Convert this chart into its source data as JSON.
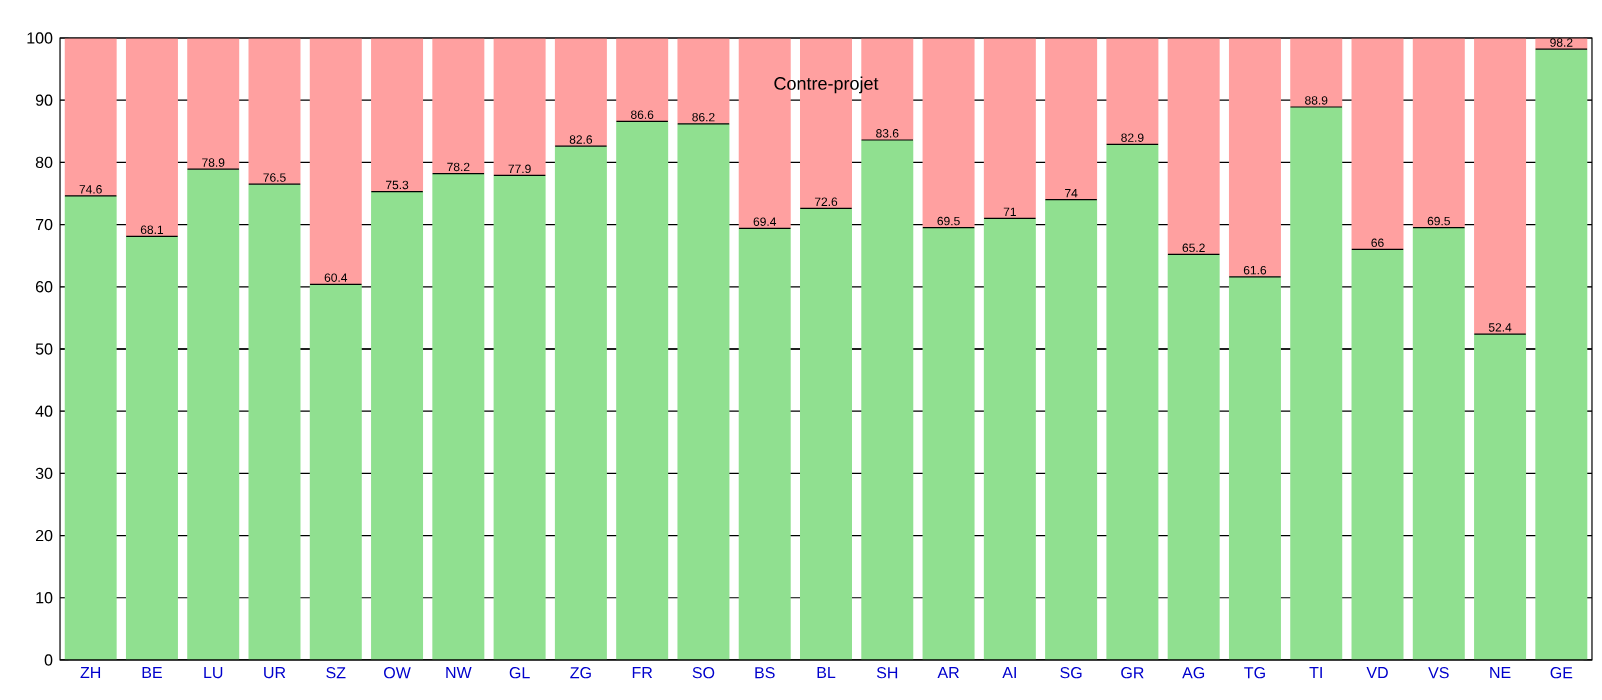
{
  "chart_data": {
    "type": "bar",
    "title": "Contre-projet",
    "stacked": true,
    "categories": [
      "ZH",
      "BE",
      "LU",
      "UR",
      "SZ",
      "OW",
      "NW",
      "GL",
      "ZG",
      "FR",
      "SO",
      "BS",
      "BL",
      "SH",
      "AR",
      "AI",
      "SG",
      "GR",
      "AG",
      "TG",
      "TI",
      "VD",
      "VS",
      "NE",
      "GE"
    ],
    "series": [
      {
        "color": "#90e090",
        "values": [
          74.6,
          68.1,
          78.9,
          76.5,
          60.4,
          75.3,
          78.2,
          77.9,
          82.6,
          86.6,
          86.2,
          69.4,
          72.6,
          83.6,
          69.5,
          71,
          74,
          82.9,
          65.2,
          61.6,
          88.9,
          66,
          69.5,
          52.4,
          98.2
        ],
        "value_labels": [
          "74.6",
          "68.1",
          "78.9",
          "76.5",
          "60.4",
          "75.3",
          "78.2",
          "77.9",
          "82.6",
          "86.6",
          "86.2",
          "69.4",
          "72.6",
          "83.6",
          "69.5",
          "71",
          "74",
          "82.9",
          "65.2",
          "61.6",
          "88.9",
          "66",
          "69.5",
          "52.4",
          "98.2"
        ]
      },
      {
        "color": "#ffa0a0",
        "values": [
          25.4,
          31.9,
          21.1,
          23.5,
          39.6,
          24.7,
          21.8,
          22.1,
          17.4,
          13.4,
          13.8,
          30.6,
          27.4,
          16.4,
          30.5,
          29,
          26,
          17.1,
          34.8,
          38.4,
          11.1,
          34,
          30.5,
          47.6,
          1.8
        ]
      }
    ],
    "ylim": [
      0,
      100
    ],
    "yticks": [
      0,
      10,
      20,
      30,
      40,
      50,
      60,
      70,
      80,
      90,
      100
    ],
    "grid": "y",
    "ref_lines": [
      {
        "axis": "y",
        "value": 50,
        "color": "#000000"
      }
    ]
  }
}
